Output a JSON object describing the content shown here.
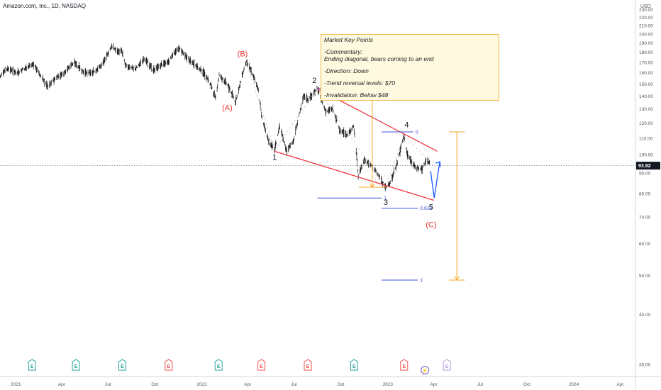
{
  "header": {
    "title": "Amazon.com, Inc., 1D, NASDAQ",
    "currency": "USD"
  },
  "note": {
    "title": "Market Key Points",
    "commentary_label": "-Commentary:",
    "commentary": "Ending diagonal, bears coming to an end",
    "direction": "-Direction: Down",
    "reversal": "-Trend reversal levels: $70",
    "invalidation": "-Invalidation: Below $48"
  },
  "colors": {
    "price": "#000000",
    "trend": "#ef3340",
    "fib": "#3f51d8",
    "measure": "#f5a623",
    "projection": "#2962ff",
    "wave_red": "#e53935",
    "earnings_green": "#26a69a",
    "earnings_red": "#ef5350",
    "dividend": "#b39ddb"
  },
  "chart_data": {
    "type": "candlestick",
    "xlim": [
      "2020-12-01",
      "2024-05-01"
    ],
    "ylim": [
      28,
      243
    ],
    "x_ticks": [
      {
        "date": "2021-01-01",
        "label": "2021"
      },
      {
        "date": "2021-04-01",
        "label": "Apr"
      },
      {
        "date": "2021-07-01",
        "label": "Jul"
      },
      {
        "date": "2021-10-01",
        "label": "Oct"
      },
      {
        "date": "2022-01-01",
        "label": "2022"
      },
      {
        "date": "2022-04-01",
        "label": "Apr"
      },
      {
        "date": "2022-07-01",
        "label": "Jul"
      },
      {
        "date": "2022-10-01",
        "label": "Oct"
      },
      {
        "date": "2023-01-01",
        "label": "2023"
      },
      {
        "date": "2023-04-01",
        "label": "Apr"
      },
      {
        "date": "2023-07-01",
        "label": "Jul"
      },
      {
        "date": "2023-10-01",
        "label": "Oct"
      },
      {
        "date": "2024-01-01",
        "label": "2024"
      },
      {
        "date": "2024-04-01",
        "label": "Apr"
      }
    ],
    "y_ticks": [
      "30.00",
      "40.00",
      "50.00",
      "60.00",
      "70.00",
      "80.00",
      "90.00",
      "100.00",
      "110.00",
      "120.00",
      "130.00",
      "140.00",
      "150.00",
      "160.00",
      "170.00",
      "180.00",
      "190.00",
      "200.00",
      "210.00",
      "220.00",
      "230.00"
    ],
    "last_price": {
      "value": 93.92,
      "label": "93.92"
    },
    "price_path": [
      [
        "2020-12-01",
        157
      ],
      [
        "2020-12-15",
        164
      ],
      [
        "2021-01-04",
        160
      ],
      [
        "2021-01-25",
        166
      ],
      [
        "2021-02-05",
        168
      ],
      [
        "2021-02-20",
        156
      ],
      [
        "2021-03-05",
        148
      ],
      [
        "2021-03-20",
        155
      ],
      [
        "2021-04-05",
        160
      ],
      [
        "2021-04-25",
        170
      ],
      [
        "2021-05-15",
        160
      ],
      [
        "2021-06-01",
        160
      ],
      [
        "2021-06-20",
        168
      ],
      [
        "2021-07-08",
        186
      ],
      [
        "2021-07-20",
        181
      ],
      [
        "2021-07-28",
        181
      ],
      [
        "2021-08-05",
        166
      ],
      [
        "2021-08-25",
        164
      ],
      [
        "2021-09-10",
        174
      ],
      [
        "2021-09-28",
        162
      ],
      [
        "2021-10-15",
        168
      ],
      [
        "2021-10-28",
        170
      ],
      [
        "2021-11-05",
        178
      ],
      [
        "2021-11-19",
        184
      ],
      [
        "2021-12-01",
        175
      ],
      [
        "2021-12-20",
        167
      ],
      [
        "2022-01-05",
        160
      ],
      [
        "2022-01-20",
        148
      ],
      [
        "2022-01-28",
        138
      ],
      [
        "2022-02-04",
        158
      ],
      [
        "2022-02-20",
        150
      ],
      [
        "2022-03-08",
        135
      ],
      [
        "2022-03-29",
        170
      ],
      [
        "2022-04-08",
        162
      ],
      [
        "2022-04-22",
        145
      ],
      [
        "2022-04-29",
        123
      ],
      [
        "2022-05-12",
        108
      ],
      [
        "2022-05-24",
        103
      ],
      [
        "2022-06-03",
        118
      ],
      [
        "2022-06-16",
        102
      ],
      [
        "2022-06-30",
        108
      ],
      [
        "2022-07-20",
        140
      ],
      [
        "2022-07-29",
        137
      ],
      [
        "2022-08-16",
        146
      ],
      [
        "2022-09-01",
        128
      ],
      [
        "2022-09-15",
        130
      ],
      [
        "2022-09-30",
        114
      ],
      [
        "2022-10-14",
        112
      ],
      [
        "2022-10-26",
        118
      ],
      [
        "2022-10-31",
        102
      ],
      [
        "2022-11-04",
        88
      ],
      [
        "2022-11-15",
        97
      ],
      [
        "2022-11-30",
        94
      ],
      [
        "2022-12-15",
        88
      ],
      [
        "2022-12-28",
        83
      ],
      [
        "2023-01-06",
        85
      ],
      [
        "2023-01-20",
        96
      ],
      [
        "2023-02-02",
        112
      ],
      [
        "2023-02-08",
        100
      ],
      [
        "2023-02-24",
        93
      ],
      [
        "2023-03-10",
        92
      ],
      [
        "2023-03-17",
        97
      ],
      [
        "2023-03-24",
        96
      ]
    ],
    "wave_labels": [
      {
        "text": "(B)",
        "date": "2022-03-22",
        "price": 176,
        "color": "wave_red"
      },
      {
        "text": "(A)",
        "date": "2022-02-20",
        "price": 129,
        "color": "wave_red"
      },
      {
        "text": "1",
        "date": "2022-05-24",
        "price": 97
      },
      {
        "text": "2",
        "date": "2022-08-10",
        "price": 151
      },
      {
        "text": "3",
        "date": "2022-12-28",
        "price": 75
      },
      {
        "text": "4",
        "date": "2023-02-07",
        "price": 117
      },
      {
        "text": "5",
        "date": "2023-03-27",
        "price": 73
      },
      {
        "text": "(C)",
        "date": "2023-03-27",
        "price": 66,
        "color": "wave_red"
      }
    ],
    "trendlines": [
      {
        "name": "diagonal-upper-line",
        "from": [
          "2022-08-16",
          146
        ],
        "to": [
          "2023-04-08",
          102
        ]
      },
      {
        "name": "diagonal-lower-line",
        "from": [
          "2022-05-24",
          102
        ],
        "to": [
          "2023-04-01",
          77
        ]
      }
    ],
    "fib_levels": [
      {
        "name": "fib-high-0",
        "from": "2022-08-16",
        "to": "2022-11-05",
        "price": 146.5
      },
      {
        "name": "fib-high-1",
        "from": "2022-08-16",
        "to": "2022-12-20",
        "price": 78,
        "label": "1"
      },
      {
        "name": "fib-b-0",
        "from": "2022-12-20",
        "to": "2023-02-20",
        "price": 114,
        "label": "0"
      },
      {
        "name": "fib-b-0618",
        "from": "2022-12-20",
        "to": "2023-03-01",
        "price": 73.6,
        "label": "0.618"
      },
      {
        "name": "fib-b-1",
        "from": "2022-12-20",
        "to": "2023-03-01",
        "price": 48.7,
        "label": "1"
      }
    ],
    "measure_projections": [
      {
        "name": "measure-first-leg",
        "from": [
          "2022-11-05",
          146.5
        ],
        "to": [
          "2022-12-28",
          83
        ],
        "top_label": "0"
      },
      {
        "name": "measure-second-leg",
        "from": [
          "2023-05-01",
          114
        ],
        "to": [
          "2023-06-01",
          48.7
        ]
      }
    ],
    "earnings_markers": [
      {
        "date": "2021-02-02",
        "kind": "green",
        "label": "E"
      },
      {
        "date": "2021-04-29",
        "kind": "green",
        "label": "E"
      },
      {
        "date": "2021-07-29",
        "kind": "green",
        "label": "E"
      },
      {
        "date": "2021-10-28",
        "kind": "red",
        "label": "E"
      },
      {
        "date": "2022-02-03",
        "kind": "green",
        "label": "E"
      },
      {
        "date": "2022-04-28",
        "kind": "red",
        "label": "E"
      },
      {
        "date": "2022-07-28",
        "kind": "red",
        "label": "E"
      },
      {
        "date": "2022-10-27",
        "kind": "green",
        "label": "E"
      },
      {
        "date": "2023-02-02",
        "kind": "red",
        "label": "E"
      },
      {
        "date": "2023-04-27",
        "kind": "future",
        "label": "E"
      }
    ],
    "split_marker": {
      "date": "2023-03-15",
      "label": "⚡"
    }
  }
}
